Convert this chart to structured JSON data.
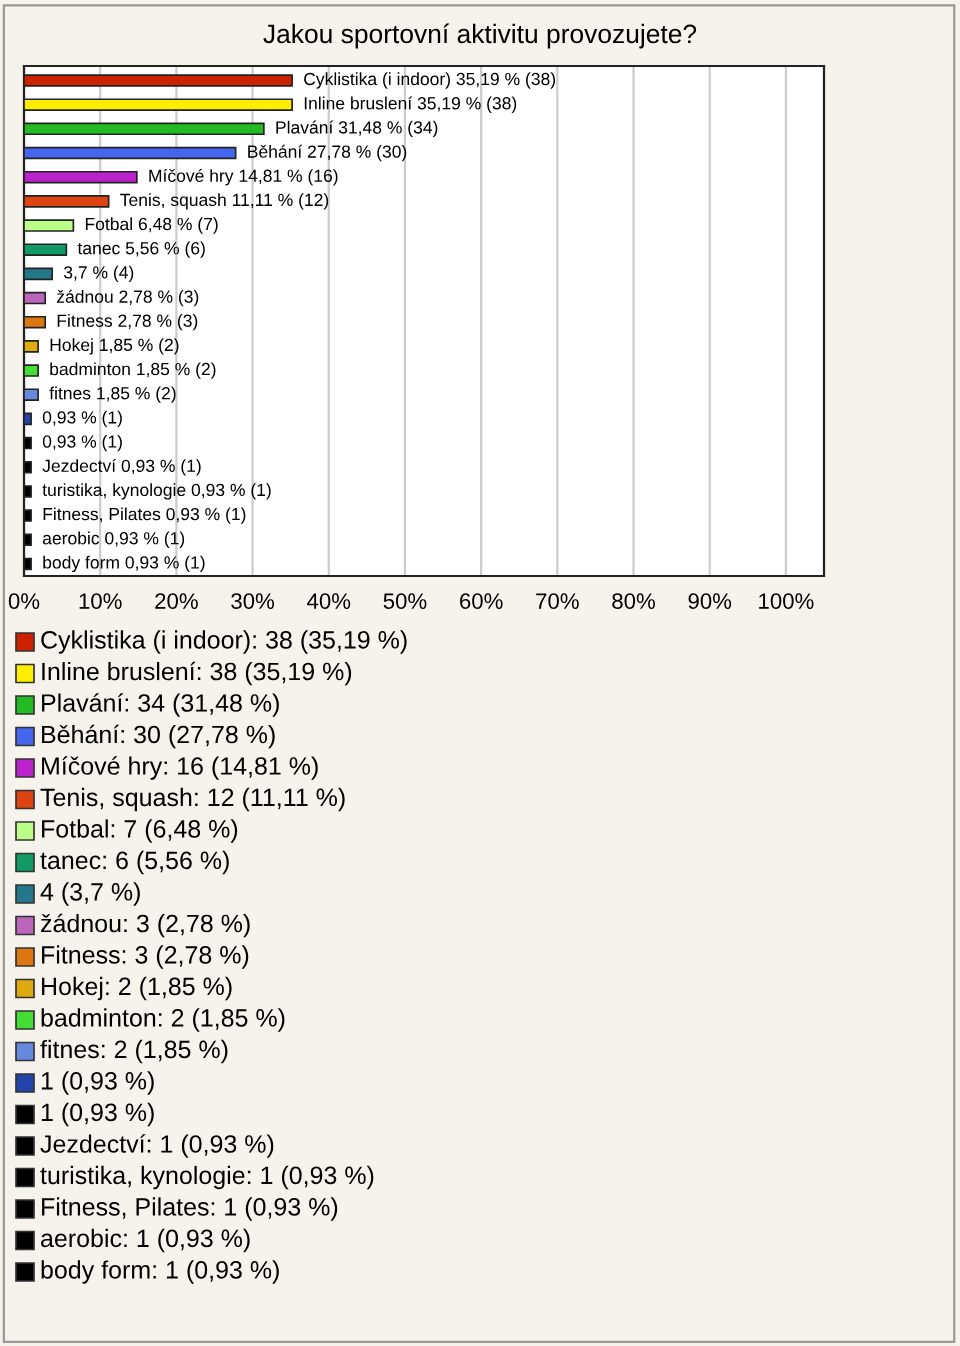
{
  "chart_data": {
    "type": "bar",
    "orientation": "horizontal",
    "title": "Jakou sportovní aktivitu provozujete?",
    "categories": [
      "Cyklistika (i indoor)",
      "Inline bruslení",
      "Plavání",
      "Běhání",
      "Míčové hry",
      "Tenis, squash",
      "Fotbal",
      "tanec",
      null,
      "žádnou",
      "Fitness",
      "Hokej",
      "badminton",
      "fitnes",
      null,
      null,
      "Jezdectví",
      "turistika, kynologie",
      "Fitness, Pilates",
      "aerobic",
      "body form"
    ],
    "values": [
      35.19,
      35.19,
      31.48,
      27.78,
      14.81,
      11.11,
      6.48,
      5.56,
      3.7,
      2.78,
      2.78,
      1.85,
      1.85,
      1.85,
      0.93,
      0.93,
      0.93,
      0.93,
      0.93,
      0.93,
      0.93
    ],
    "value_labels": [
      "35,19 % (38)",
      "35,19 % (38)",
      "31,48 % (34)",
      "27,78 % (30)",
      "14,81 % (16)",
      "11,11 % (12)",
      "6,48 % (7)",
      "5,56 % (6)",
      "3,7 % (4)",
      "2,78 % (3)",
      "2,78 % (3)",
      "1,85 % (2)",
      "1,85 % (2)",
      "1,85 % (2)",
      "0,93 % (1)",
      "0,93 % (1)",
      "0,93 % (1)",
      "0,93 % (1)",
      "0,93 % (1)",
      "0,93 % (1)",
      "0,93 % (1)"
    ],
    "colors": [
      "#cc2200",
      "#ffee00",
      "#22bb22",
      "#4466ee",
      "#bb22cc",
      "#dd4411",
      "#bbff88",
      "#119966",
      "#227788",
      "#bb66bb",
      "#dd7711",
      "#ddaa11",
      "#44dd33",
      "#6688dd",
      "#2244aa",
      "#000000",
      "#000000",
      "#000000",
      "#000000",
      "#000000",
      "#000000"
    ],
    "annotations": [
      "Cyklistika (i indoor): 38 (35,19 %)",
      "Inline bruslení: 38 (35,19 %)",
      "Plavání: 34 (31,48 %)",
      "Běhání: 30 (27,78 %)",
      "Míčové hry: 16 (14,81 %)",
      "Tenis, squash: 12 (11,11 %)",
      "Fotbal: 7 (6,48 %)",
      "tanec: 6 (5,56 %)",
      "4 (3,7 %)",
      "žádnou: 3 (2,78 %)",
      "Fitness: 3 (2,78 %)",
      "Hokej: 2 (1,85 %)",
      "badminton: 2 (1,85 %)",
      "fitnes: 2 (1,85 %)",
      "1 (0,93 %)",
      "1 (0,93 %)",
      "Jezdectví: 1 (0,93 %)",
      "turistika, kynologie: 1 (0,93 %)",
      "Fitness, Pilates: 1 (0,93 %)",
      "aerobic: 1 (0,93 %)",
      "body form: 1 (0,93 %)"
    ],
    "xlim": [
      0,
      105
    ],
    "xticks": [
      {
        "value": 0,
        "label": "0%"
      },
      {
        "value": 10,
        "label": "10%"
      },
      {
        "value": 20,
        "label": "20%"
      },
      {
        "value": 30,
        "label": "30%"
      },
      {
        "value": 40,
        "label": "40%"
      },
      {
        "value": 50,
        "label": "50%"
      },
      {
        "value": 60,
        "label": "60%"
      },
      {
        "value": 70,
        "label": "70%"
      },
      {
        "value": 80,
        "label": "80%"
      },
      {
        "value": 90,
        "label": "90%"
      },
      {
        "value": 100,
        "label": "100%"
      }
    ],
    "grid": "x"
  }
}
